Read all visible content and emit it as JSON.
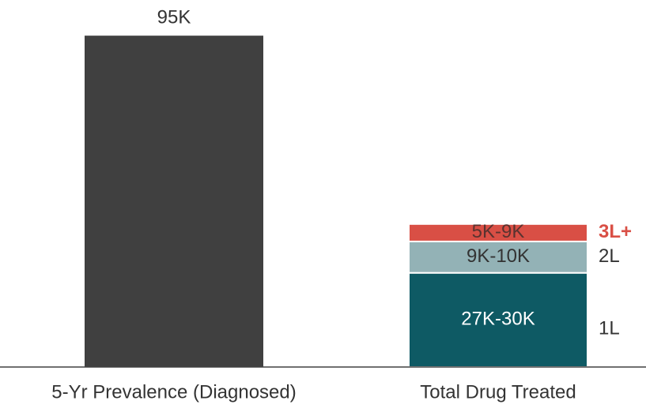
{
  "chart_data": {
    "type": "stacked_bar",
    "categories": [
      "5-Yr Prevalence (Diagnosed)",
      "Total Drug Treated"
    ],
    "series": [
      {
        "color": "#404040",
        "label_color": "#333333",
        "values": [
          95,
          null
        ],
        "value_labels": [
          "95K",
          null
        ],
        "label_position": "above"
      },
      {
        "name": "1L",
        "color": "#0e5a64",
        "label_color": "#ffffff",
        "legend_color": "#333333",
        "values": [
          null,
          27
        ],
        "value_labels": [
          null,
          "27K-30K"
        ]
      },
      {
        "name": "2L",
        "color": "#93b2b6",
        "label_color": "#333333",
        "legend_color": "#333333",
        "values": [
          null,
          9
        ],
        "value_labels": [
          null,
          "9K-10K"
        ]
      },
      {
        "name": "3L+",
        "color": "#d94f45",
        "label_color": "#5a3330",
        "legend_color": "#d94f45",
        "legend_bold": true,
        "values": [
          null,
          5
        ],
        "value_labels": [
          null,
          "5K-9K"
        ]
      }
    ],
    "ylim": [
      0,
      105
    ],
    "grid": false
  }
}
